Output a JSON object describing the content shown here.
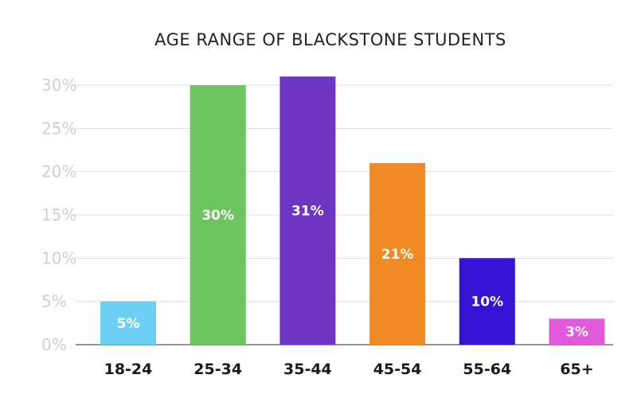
{
  "chart_data": {
    "type": "bar",
    "title": "AGE RANGE OF BLACKSTONE STUDENTS",
    "xlabel": "",
    "ylabel": "",
    "ylim": [
      0,
      30
    ],
    "yticks": [
      "0%",
      "5%",
      "10%",
      "15%",
      "20%",
      "25%",
      "30%"
    ],
    "categories": [
      "18-24",
      "25-34",
      "35-44",
      "45-54",
      "55-64",
      "65+"
    ],
    "values": [
      5,
      30,
      31,
      21,
      10,
      3
    ],
    "data_labels": [
      "5%",
      "30%",
      "31%",
      "21%",
      "10%",
      "3%"
    ],
    "colors": [
      "#6cd0f5",
      "#6cc55f",
      "#6e35c2",
      "#ef8b22",
      "#3613d4",
      "#e05adb"
    ],
    "grid": true,
    "legend": "none"
  }
}
